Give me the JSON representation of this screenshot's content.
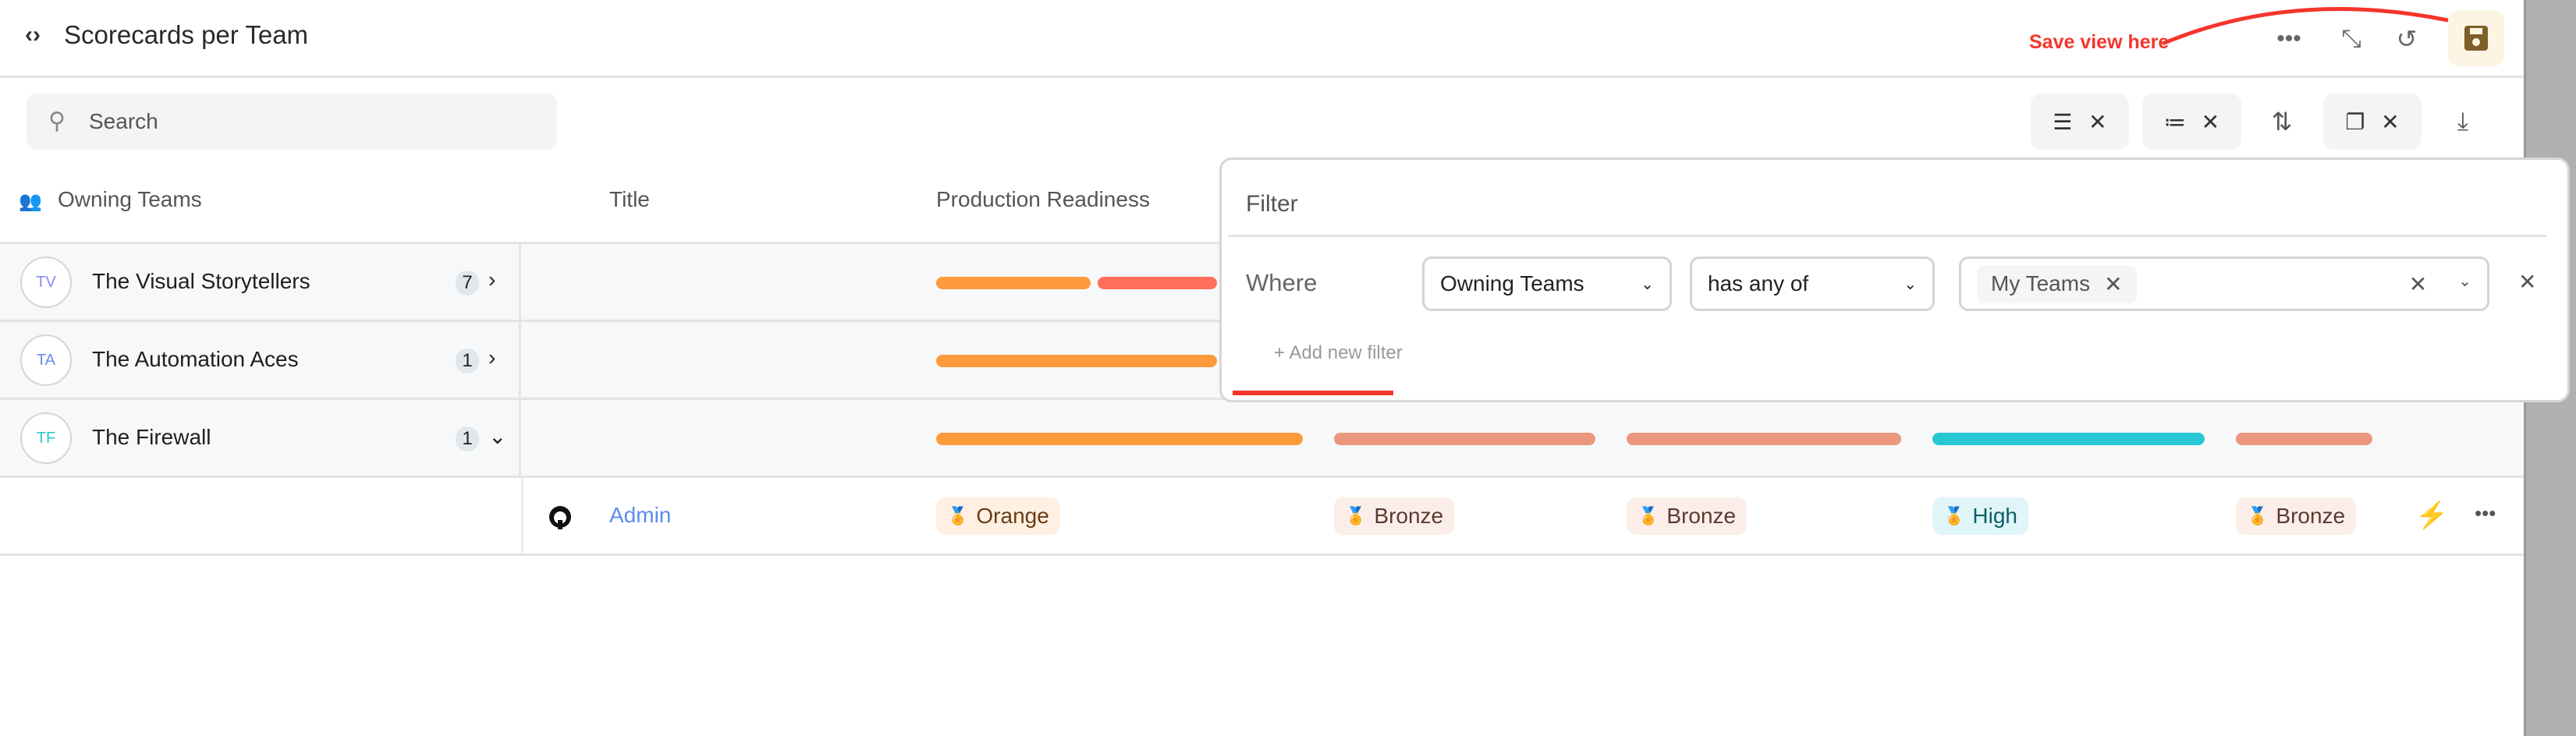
{
  "header": {
    "title": "Scorecards per Team",
    "annotation": "Save view here",
    "icons": [
      "code-icon",
      "more-icon",
      "collapse-icon",
      "refresh-icon",
      "save-icon"
    ]
  },
  "search": {
    "placeholder": "Search"
  },
  "toolbar": {
    "icons": [
      "filter-icon",
      "group-by-icon",
      "sort-icon",
      "copy-icon",
      "download-icon"
    ],
    "clear": "✕"
  },
  "columns": {
    "owning_teams": "Owning Teams",
    "title": "Title",
    "production_readiness": "Production Readiness"
  },
  "groups": [
    {
      "initials": "TV",
      "name": "The Visual Storytellers",
      "count": "7",
      "expanded": false,
      "initials_color": "#8b8cf0"
    },
    {
      "initials": "TA",
      "name": "The Automation Aces",
      "count": "1",
      "expanded": false,
      "initials_color": "#6c8cf0"
    },
    {
      "initials": "TF",
      "name": "The Firewall",
      "count": "1",
      "expanded": true,
      "initials_color": "#2fc6c6"
    }
  ],
  "entity_row": {
    "title": "Admin",
    "badges": [
      {
        "label": "Orange",
        "level": "orange"
      },
      {
        "label": "Bronze",
        "level": "bronze"
      },
      {
        "label": "Bronze",
        "level": "bronze"
      },
      {
        "label": "High",
        "level": "high"
      },
      {
        "label": "Bronze",
        "level": "bronze"
      }
    ]
  },
  "colors": {
    "orange": "#fd9a3c",
    "red": "#ff6f59",
    "bronze": "#ea977d",
    "teal": "#29c6d3",
    "save_bg": "#fcf5e4",
    "save_icon": "#7f5f28",
    "annotation": "#f5352c"
  },
  "filter_popup": {
    "title": "Filter",
    "where": "Where",
    "field": "Owning Teams",
    "operator": "has any of",
    "value_chip": "My Teams",
    "add_filter": "+ Add new filter"
  }
}
